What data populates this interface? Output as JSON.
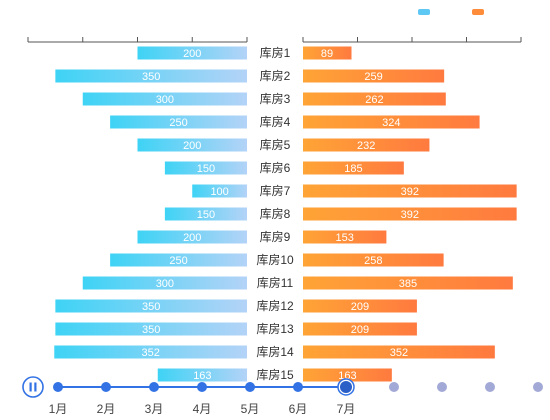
{
  "legend": {
    "items": [
      {
        "label": "",
        "color": "#5ec8f5"
      },
      {
        "label": "",
        "color": "#ff8c3a"
      }
    ]
  },
  "chart_data": {
    "type": "bar",
    "orientation": "horizontal-butterfly",
    "categories": [
      "库房1",
      "库房2",
      "库房3",
      "库房4",
      "库房5",
      "库房6",
      "库房7",
      "库房8",
      "库房9",
      "库房10",
      "库房11",
      "库房12",
      "库房13",
      "库房14",
      "库房15"
    ],
    "series": [
      {
        "side": "left",
        "values": [
          200,
          350,
          300,
          250,
          200,
          150,
          100,
          150,
          200,
          250,
          300,
          350,
          350,
          352,
          163
        ],
        "color_start": "#3ed3f5",
        "color_end": "#b3d3f7"
      },
      {
        "side": "right",
        "values": [
          89,
          259,
          262,
          324,
          232,
          185,
          392,
          392,
          153,
          258,
          385,
          209,
          209,
          352,
          163
        ],
        "color_start": "#ffa436",
        "color_end": "#ff7a3f"
      }
    ],
    "xlim": [
      0,
      400
    ],
    "axis_ticks": 4,
    "value_labels": true,
    "grid": false
  },
  "timeline": {
    "labels": [
      "1月",
      "2月",
      "3月",
      "4月",
      "5月",
      "6月",
      "7月"
    ],
    "current_index": 6,
    "total_points": 11,
    "play_state": "paused",
    "active_color": "#3272e4",
    "inactive_color": "#a2a9d6"
  }
}
